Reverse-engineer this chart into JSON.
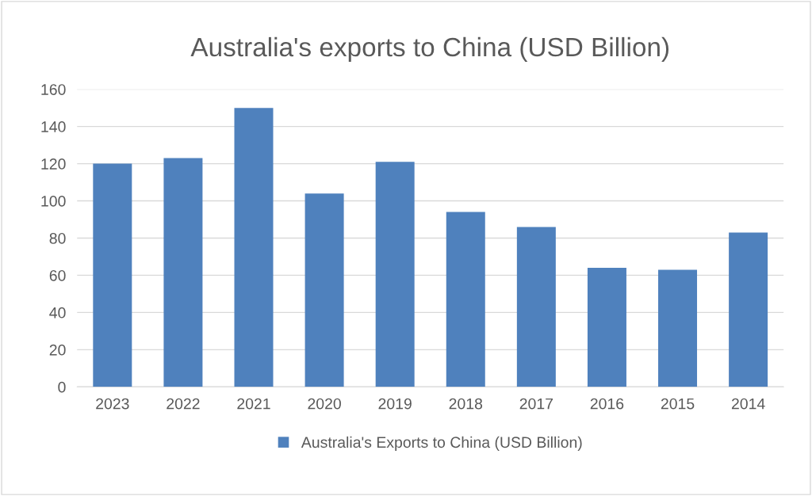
{
  "chart_data": {
    "type": "bar",
    "title": "Australia's exports to China (USD Billion)",
    "categories": [
      "2023",
      "2022",
      "2021",
      "2020",
      "2019",
      "2018",
      "2017",
      "2016",
      "2015",
      "2014"
    ],
    "series": [
      {
        "name": "Australia's Exports to China (USD Billion)",
        "color": "#4f81bd",
        "values": [
          120,
          123,
          150,
          104,
          121,
          94,
          86,
          64,
          63,
          83
        ]
      }
    ],
    "ylim": [
      0,
      160
    ],
    "yticks": [
      0,
      20,
      40,
      60,
      80,
      100,
      120,
      140,
      160
    ],
    "grid": "y",
    "legend": "bottom"
  }
}
